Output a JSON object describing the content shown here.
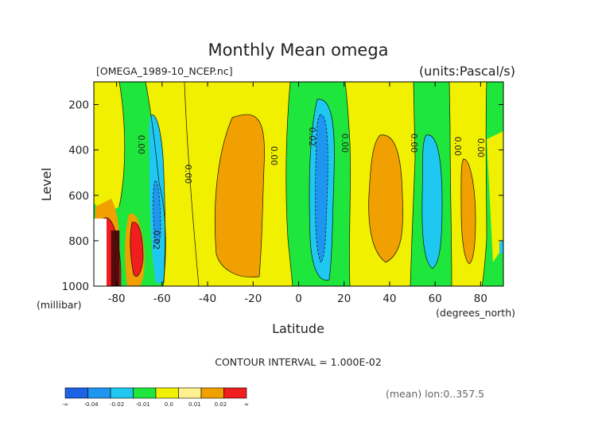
{
  "chart_data": {
    "type": "contour",
    "title": "Monthly Mean omega",
    "file_label": "[OMEGA_1989-10_NCEP.nc]",
    "units_label": "(units:Pascal/s)",
    "xlabel": "Latitude",
    "xunits": "(degrees_north)",
    "ylabel": "Level",
    "yunits": "(millibar)",
    "xlim": [
      -90,
      90
    ],
    "ylim": [
      1000,
      100
    ],
    "y_reversed": true,
    "x_ticks": [
      -80,
      -60,
      -40,
      -20,
      0,
      20,
      40,
      60,
      80
    ],
    "y_ticks": [
      200,
      400,
      600,
      800,
      1000
    ],
    "x_tick_labels": [
      "-80",
      "-60",
      "-40",
      "-20",
      "0",
      "20",
      "40",
      "60",
      "80"
    ],
    "y_tick_labels": [
      "200",
      "400",
      "600",
      "800",
      "1000"
    ],
    "contour_interval_text": "CONTOUR INTERVAL = 1.000E-02",
    "mean_text": "(mean) lon:0..357.5",
    "contour_labels": [
      "0.00",
      "0.00",
      "0.00",
      "0.02",
      "0.00",
      "0.00",
      "0.00",
      "0.00",
      "0.02"
    ],
    "colorbar": {
      "colors": [
        "#1e62e6",
        "#1e96f0",
        "#1ec8f0",
        "#1ee63c",
        "#f0f000",
        "#fff090",
        "#f0a000",
        "#f01e1e"
      ],
      "labels": [
        "-∞",
        "-0.04",
        "-0.02",
        "-0.01",
        "0.0",
        "0.01",
        "0.02",
        "∞"
      ]
    },
    "field_features": [
      {
        "level": "0.01 to 0.02",
        "lat_range": [
          -35,
          -12
        ],
        "level_range": [
          220,
          940
        ]
      },
      {
        "level": "-0.02 to -0.01",
        "lat_range": [
          0,
          18
        ],
        "level_range": [
          130,
          940
        ]
      },
      {
        "level": "-0.04 to -0.02",
        "lat_range": [
          3,
          14
        ],
        "level_range": [
          240,
          870
        ]
      },
      {
        "level": "-0.01 to 0.0",
        "lat_range": [
          -67,
          -58
        ],
        "level_range": [
          260,
          1000
        ]
      },
      {
        "level": "-0.01 to 0.0",
        "lat_range": [
          53,
          66
        ],
        "level_range": [
          320,
          910
        ]
      },
      {
        "level": "0.01 to 0.02",
        "lat_range": [
          36,
          50
        ],
        "level_range": [
          350,
          900
        ]
      },
      {
        "level": "0.02 to inf",
        "lat_range": [
          -86,
          -68
        ],
        "level_range": [
          660,
          1000
        ]
      }
    ]
  }
}
